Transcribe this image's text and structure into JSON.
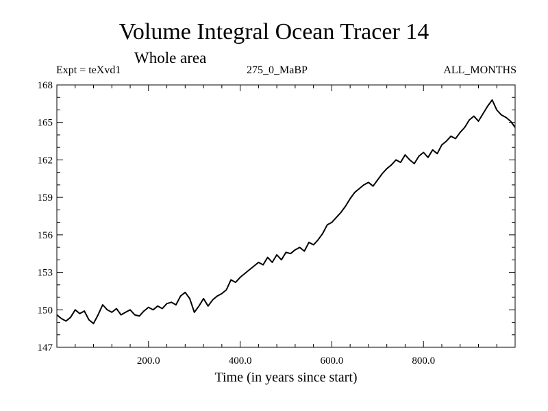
{
  "chart_data": {
    "type": "line",
    "title": "Volume Integral Ocean Tracer 14",
    "subtitle": "Whole area",
    "annotations": {
      "left": "Expt = teXvd1",
      "center": "275_0_MaBP",
      "right": "ALL_MONTHS"
    },
    "xlabel": "Time (in years since start)",
    "ylabel": "",
    "xlim": [
      0,
      1000
    ],
    "ylim": [
      147,
      168
    ],
    "xticks": [
      200,
      400,
      600,
      800
    ],
    "xtick_labels": [
      "200.0",
      "400.0",
      "600.0",
      "800.0"
    ],
    "yticks": [
      147,
      150,
      153,
      156,
      159,
      162,
      165,
      168
    ],
    "ytick_labels": [
      "147",
      "150",
      "153",
      "156",
      "159",
      "162",
      "165",
      "168"
    ],
    "grid": false,
    "series": [
      {
        "name": "Volume Integral Ocean Tracer 14",
        "x": [
          0,
          10,
          20,
          30,
          40,
          50,
          60,
          70,
          80,
          90,
          100,
          110,
          120,
          130,
          140,
          150,
          160,
          170,
          180,
          190,
          200,
          210,
          220,
          230,
          240,
          250,
          260,
          270,
          280,
          290,
          300,
          310,
          320,
          330,
          340,
          350,
          360,
          370,
          380,
          390,
          400,
          410,
          420,
          430,
          440,
          450,
          460,
          470,
          480,
          490,
          500,
          510,
          520,
          530,
          540,
          550,
          560,
          570,
          580,
          590,
          600,
          610,
          620,
          630,
          640,
          650,
          660,
          670,
          680,
          690,
          700,
          710,
          720,
          730,
          740,
          750,
          760,
          770,
          780,
          790,
          800,
          810,
          820,
          830,
          840,
          850,
          860,
          870,
          880,
          890,
          900,
          910,
          920,
          930,
          940,
          950,
          960,
          970,
          980,
          990,
          1000
        ],
        "values": [
          149.6,
          149.3,
          149.1,
          149.4,
          150.0,
          149.7,
          149.9,
          149.2,
          148.9,
          149.6,
          150.4,
          150.0,
          149.8,
          150.1,
          149.6,
          149.8,
          150.0,
          149.6,
          149.5,
          149.9,
          150.2,
          150.0,
          150.3,
          150.1,
          150.5,
          150.6,
          150.4,
          151.1,
          151.4,
          150.9,
          149.8,
          150.3,
          150.9,
          150.3,
          150.8,
          151.1,
          151.3,
          151.6,
          152.4,
          152.2,
          152.6,
          152.9,
          153.2,
          153.5,
          153.8,
          153.6,
          154.2,
          153.8,
          154.4,
          154.0,
          154.6,
          154.5,
          154.8,
          155.0,
          154.7,
          155.4,
          155.2,
          155.6,
          156.1,
          156.8,
          157.0,
          157.4,
          157.8,
          158.3,
          158.9,
          159.4,
          159.7,
          160.0,
          160.2,
          159.9,
          160.4,
          160.9,
          161.3,
          161.6,
          162.0,
          161.8,
          162.4,
          162.0,
          161.7,
          162.3,
          162.6,
          162.2,
          162.8,
          162.5,
          163.2,
          163.5,
          163.9,
          163.7,
          164.2,
          164.6,
          165.2,
          165.5,
          165.1,
          165.7,
          166.3,
          166.8,
          166.0,
          165.6,
          165.4,
          165.1,
          164.6
        ]
      }
    ]
  }
}
